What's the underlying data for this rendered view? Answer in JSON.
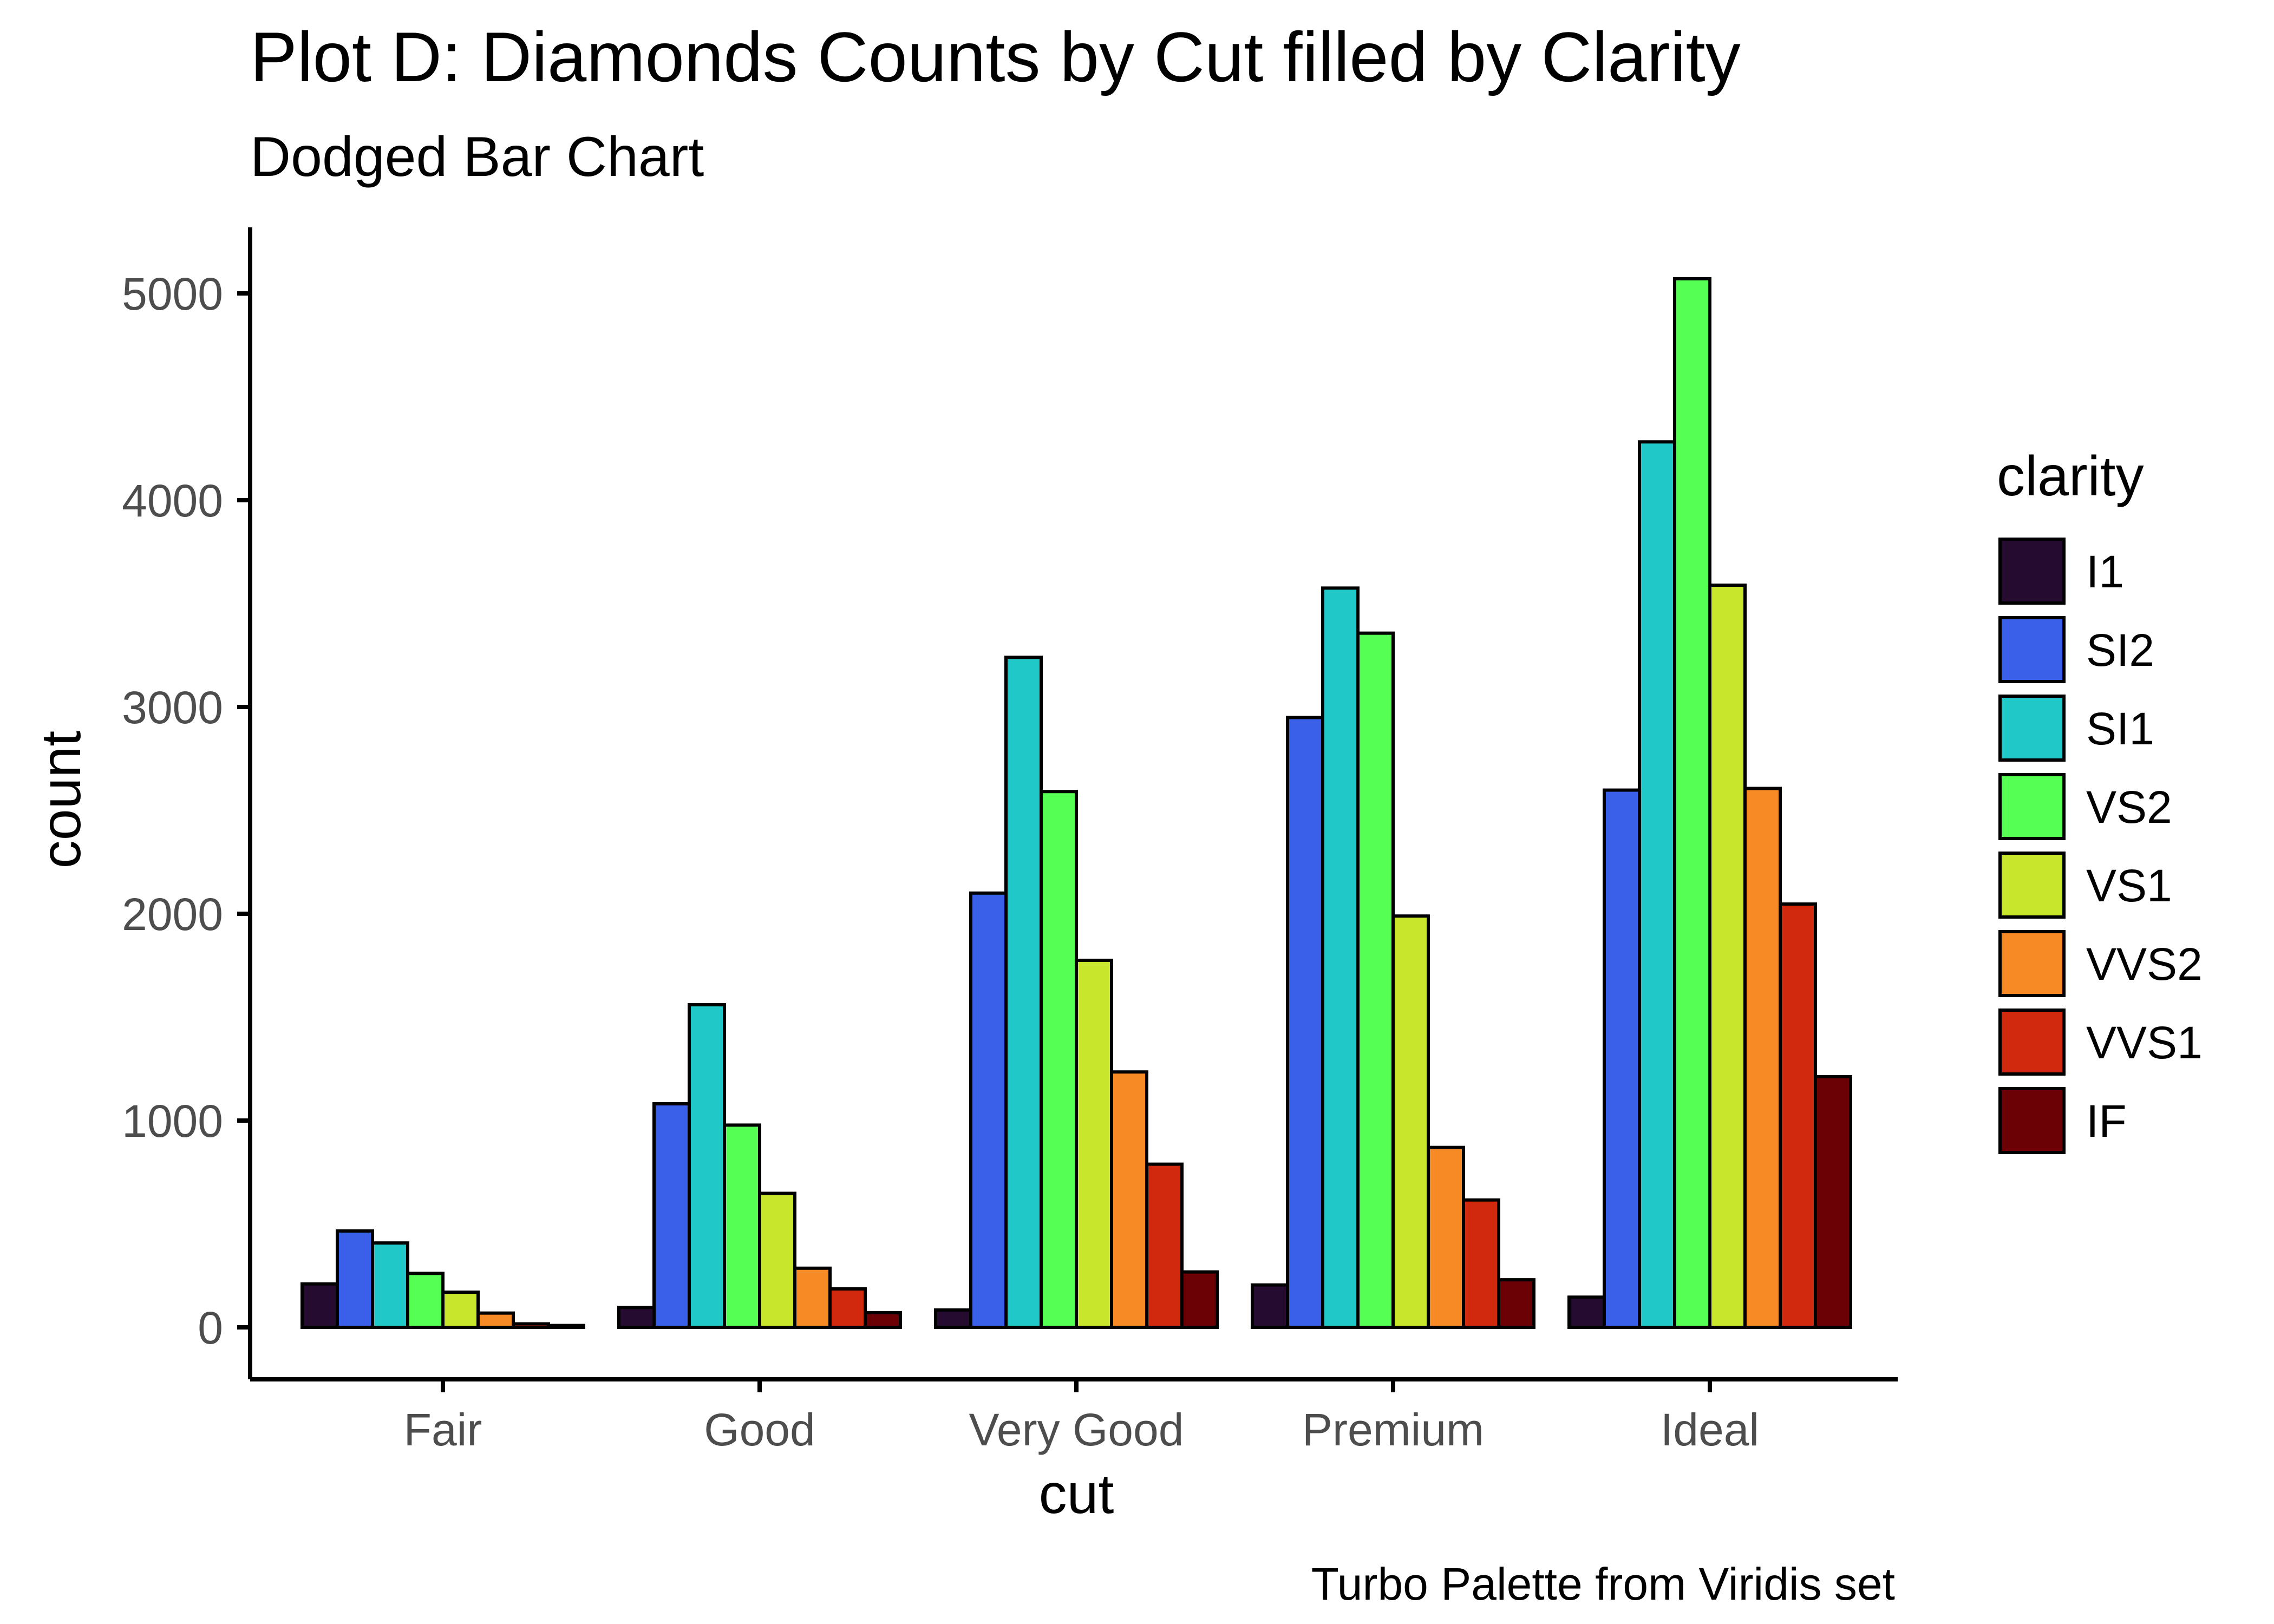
{
  "chart_data": {
    "type": "bar",
    "title": "Plot D: Diamonds Counts by Cut filled by Clarity",
    "subtitle": "Dodged Bar Chart",
    "caption": "Turbo Palette from Viridis set",
    "xlabel": "cut",
    "ylabel": "count",
    "categories": [
      "Fair",
      "Good",
      "Very Good",
      "Premium",
      "Ideal"
    ],
    "y_ticks": [
      "0",
      "1000",
      "2000",
      "3000",
      "4000",
      "5000"
    ],
    "y_tick_values": [
      0,
      1000,
      2000,
      3000,
      4000,
      5000
    ],
    "ylim": [
      0,
      5300
    ],
    "grid": false,
    "legend_title": "clarity",
    "legend_position": "right",
    "series": [
      {
        "name": "I1",
        "color": "#240B2F",
        "values": [
          210,
          96,
          84,
          205,
          146
        ]
      },
      {
        "name": "SI2",
        "color": "#3A5FE8",
        "values": [
          466,
          1081,
          2100,
          2949,
          2598
        ]
      },
      {
        "name": "SI1",
        "color": "#21C8C8",
        "values": [
          408,
          1560,
          3240,
          3575,
          4282
        ]
      },
      {
        "name": "VS2",
        "color": "#56FF54",
        "values": [
          261,
          978,
          2591,
          3357,
          5071
        ]
      },
      {
        "name": "VS1",
        "color": "#C8E72C",
        "values": [
          170,
          648,
          1775,
          1989,
          3589
        ]
      },
      {
        "name": "VVS2",
        "color": "#F88A25",
        "values": [
          69,
          286,
          1235,
          870,
          2606
        ]
      },
      {
        "name": "VVS1",
        "color": "#D0290D",
        "values": [
          17,
          186,
          789,
          616,
          2047
        ]
      },
      {
        "name": "IF",
        "color": "#6B0104",
        "values": [
          9,
          71,
          268,
          230,
          1212
        ]
      }
    ]
  }
}
